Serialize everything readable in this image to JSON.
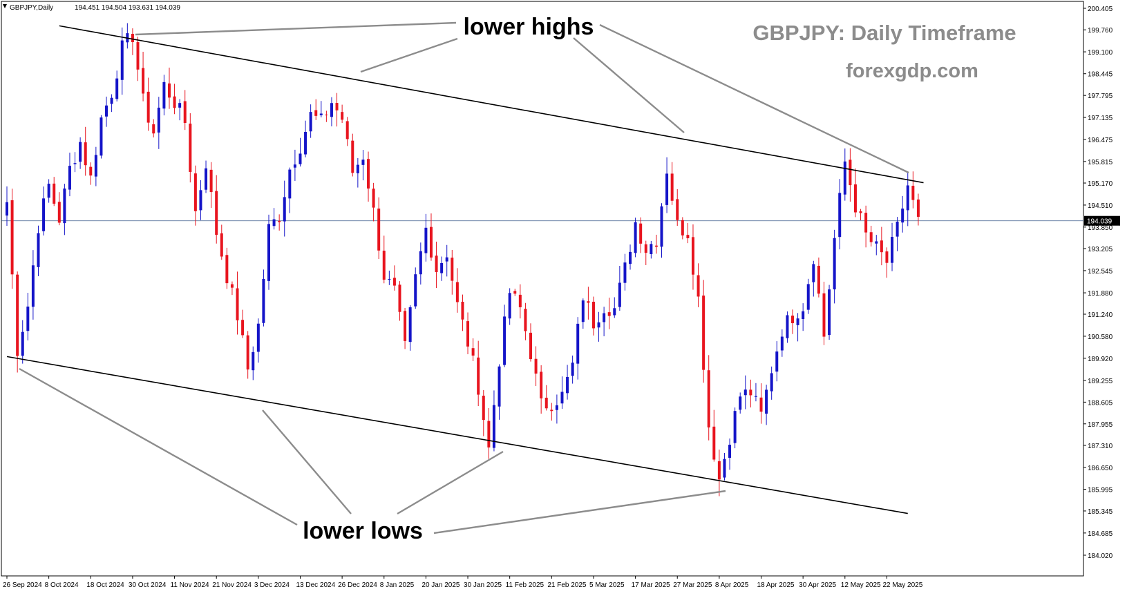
{
  "window": {
    "symbol_line": "GBPJPY,Daily",
    "ohlc": "194.451 194.504 193.631 194.039"
  },
  "annotations": {
    "title": "GBPJPY: Daily Timeframe",
    "site": "forexgdp.com",
    "lower_highs": "lower highs",
    "lower_lows": "lower lows"
  },
  "colors": {
    "bull": "#1414c8",
    "bear": "#e8141e",
    "trendline": "#000000",
    "pointer": "#8c8c8c",
    "price_line": "#3c5a8c",
    "price_tag_bg": "#000000",
    "grid": "none"
  },
  "chart_data": {
    "type": "candlestick",
    "symbol": "GBPJPY",
    "timeframe": "Daily",
    "ylim": [
      184.02,
      200.405
    ],
    "y_ticks": [
      "200.405",
      "199.760",
      "199.100",
      "198.445",
      "197.795",
      "197.135",
      "196.475",
      "195.815",
      "195.170",
      "194.510",
      "193.850",
      "193.205",
      "192.545",
      "191.880",
      "191.240",
      "190.580",
      "189.920",
      "189.255",
      "188.605",
      "187.955",
      "187.310",
      "186.650",
      "185.995",
      "185.345",
      "184.685",
      "184.020"
    ],
    "x_ticks": [
      "26 Sep 2024",
      "8 Oct 2024",
      "18 Oct 2024",
      "30 Oct 2024",
      "11 Nov 2024",
      "21 Nov 2024",
      "3 Dec 2024",
      "13 Dec 2024",
      "26 Dec 2024",
      "8 Jan 2025",
      "20 Jan 2025",
      "30 Jan 2025",
      "11 Feb 2025",
      "21 Feb 2025",
      "5 Mar 2025",
      "17 Mar 2025",
      "27 Mar 2025",
      "8 Apr 2025",
      "18 Apr 2025",
      "30 Apr 2025",
      "12 May 2025",
      "22 May 2025"
    ],
    "x_tick_index": [
      0,
      8,
      16,
      24,
      32,
      40,
      48,
      56,
      64,
      72,
      80,
      88,
      96,
      104,
      112,
      120,
      128,
      136,
      144,
      152,
      160,
      168
    ],
    "current_price": "194.039",
    "close_anchors": [
      [
        0,
        194.6
      ],
      [
        2,
        190.2
      ],
      [
        4,
        191.5
      ],
      [
        6,
        193.9
      ],
      [
        8,
        195.1
      ],
      [
        10,
        194.1
      ],
      [
        12,
        195.6
      ],
      [
        14,
        196.4
      ],
      [
        16,
        195.3
      ],
      [
        18,
        197.1
      ],
      [
        20,
        197.9
      ],
      [
        22,
        199.2
      ],
      [
        24,
        199.6
      ],
      [
        26,
        197.6
      ],
      [
        28,
        196.7
      ],
      [
        30,
        198.1
      ],
      [
        32,
        197.6
      ],
      [
        34,
        197.0
      ],
      [
        36,
        194.3
      ],
      [
        38,
        195.8
      ],
      [
        40,
        193.7
      ],
      [
        42,
        192.4
      ],
      [
        44,
        191.2
      ],
      [
        46,
        189.6
      ],
      [
        48,
        190.9
      ],
      [
        50,
        193.8
      ],
      [
        52,
        194.2
      ],
      [
        54,
        195.6
      ],
      [
        56,
        196.3
      ],
      [
        58,
        197.2
      ],
      [
        60,
        197.0
      ],
      [
        62,
        197.6
      ],
      [
        64,
        197.1
      ],
      [
        66,
        195.5
      ],
      [
        68,
        196.0
      ],
      [
        70,
        194.3
      ],
      [
        72,
        192.4
      ],
      [
        74,
        191.9
      ],
      [
        76,
        190.2
      ],
      [
        78,
        192.3
      ],
      [
        80,
        193.8
      ],
      [
        82,
        192.6
      ],
      [
        84,
        193.1
      ],
      [
        86,
        191.5
      ],
      [
        88,
        190.4
      ],
      [
        90,
        189.1
      ],
      [
        92,
        187.2
      ],
      [
        94,
        189.9
      ],
      [
        96,
        191.9
      ],
      [
        98,
        191.4
      ],
      [
        100,
        190.1
      ],
      [
        102,
        188.5
      ],
      [
        104,
        188.6
      ],
      [
        106,
        188.8
      ],
      [
        108,
        189.7
      ],
      [
        110,
        191.8
      ],
      [
        112,
        191.0
      ],
      [
        114,
        191.5
      ],
      [
        116,
        191.4
      ],
      [
        118,
        192.6
      ],
      [
        120,
        194.0
      ],
      [
        122,
        193.2
      ],
      [
        124,
        193.5
      ],
      [
        126,
        195.6
      ],
      [
        128,
        193.9
      ],
      [
        130,
        193.7
      ],
      [
        132,
        191.7
      ],
      [
        134,
        187.9
      ],
      [
        136,
        186.3
      ],
      [
        138,
        187.6
      ],
      [
        140,
        188.8
      ],
      [
        142,
        188.9
      ],
      [
        144,
        188.2
      ],
      [
        146,
        189.6
      ],
      [
        148,
        190.8
      ],
      [
        150,
        191.2
      ],
      [
        152,
        191.5
      ],
      [
        154,
        193.0
      ],
      [
        156,
        190.6
      ],
      [
        158,
        193.5
      ],
      [
        160,
        195.8
      ],
      [
        162,
        194.5
      ],
      [
        164,
        193.6
      ],
      [
        166,
        193.2
      ],
      [
        168,
        192.8
      ],
      [
        170,
        193.8
      ],
      [
        172,
        195.1
      ],
      [
        174,
        194.0
      ]
    ],
    "trend_lines": [
      {
        "name": "upper",
        "from": [
          10,
          199.88
        ],
        "to": [
          175,
          195.18
        ]
      },
      {
        "name": "lower",
        "from": [
          0,
          189.97
        ],
        "to": [
          172,
          185.27
        ]
      }
    ]
  }
}
